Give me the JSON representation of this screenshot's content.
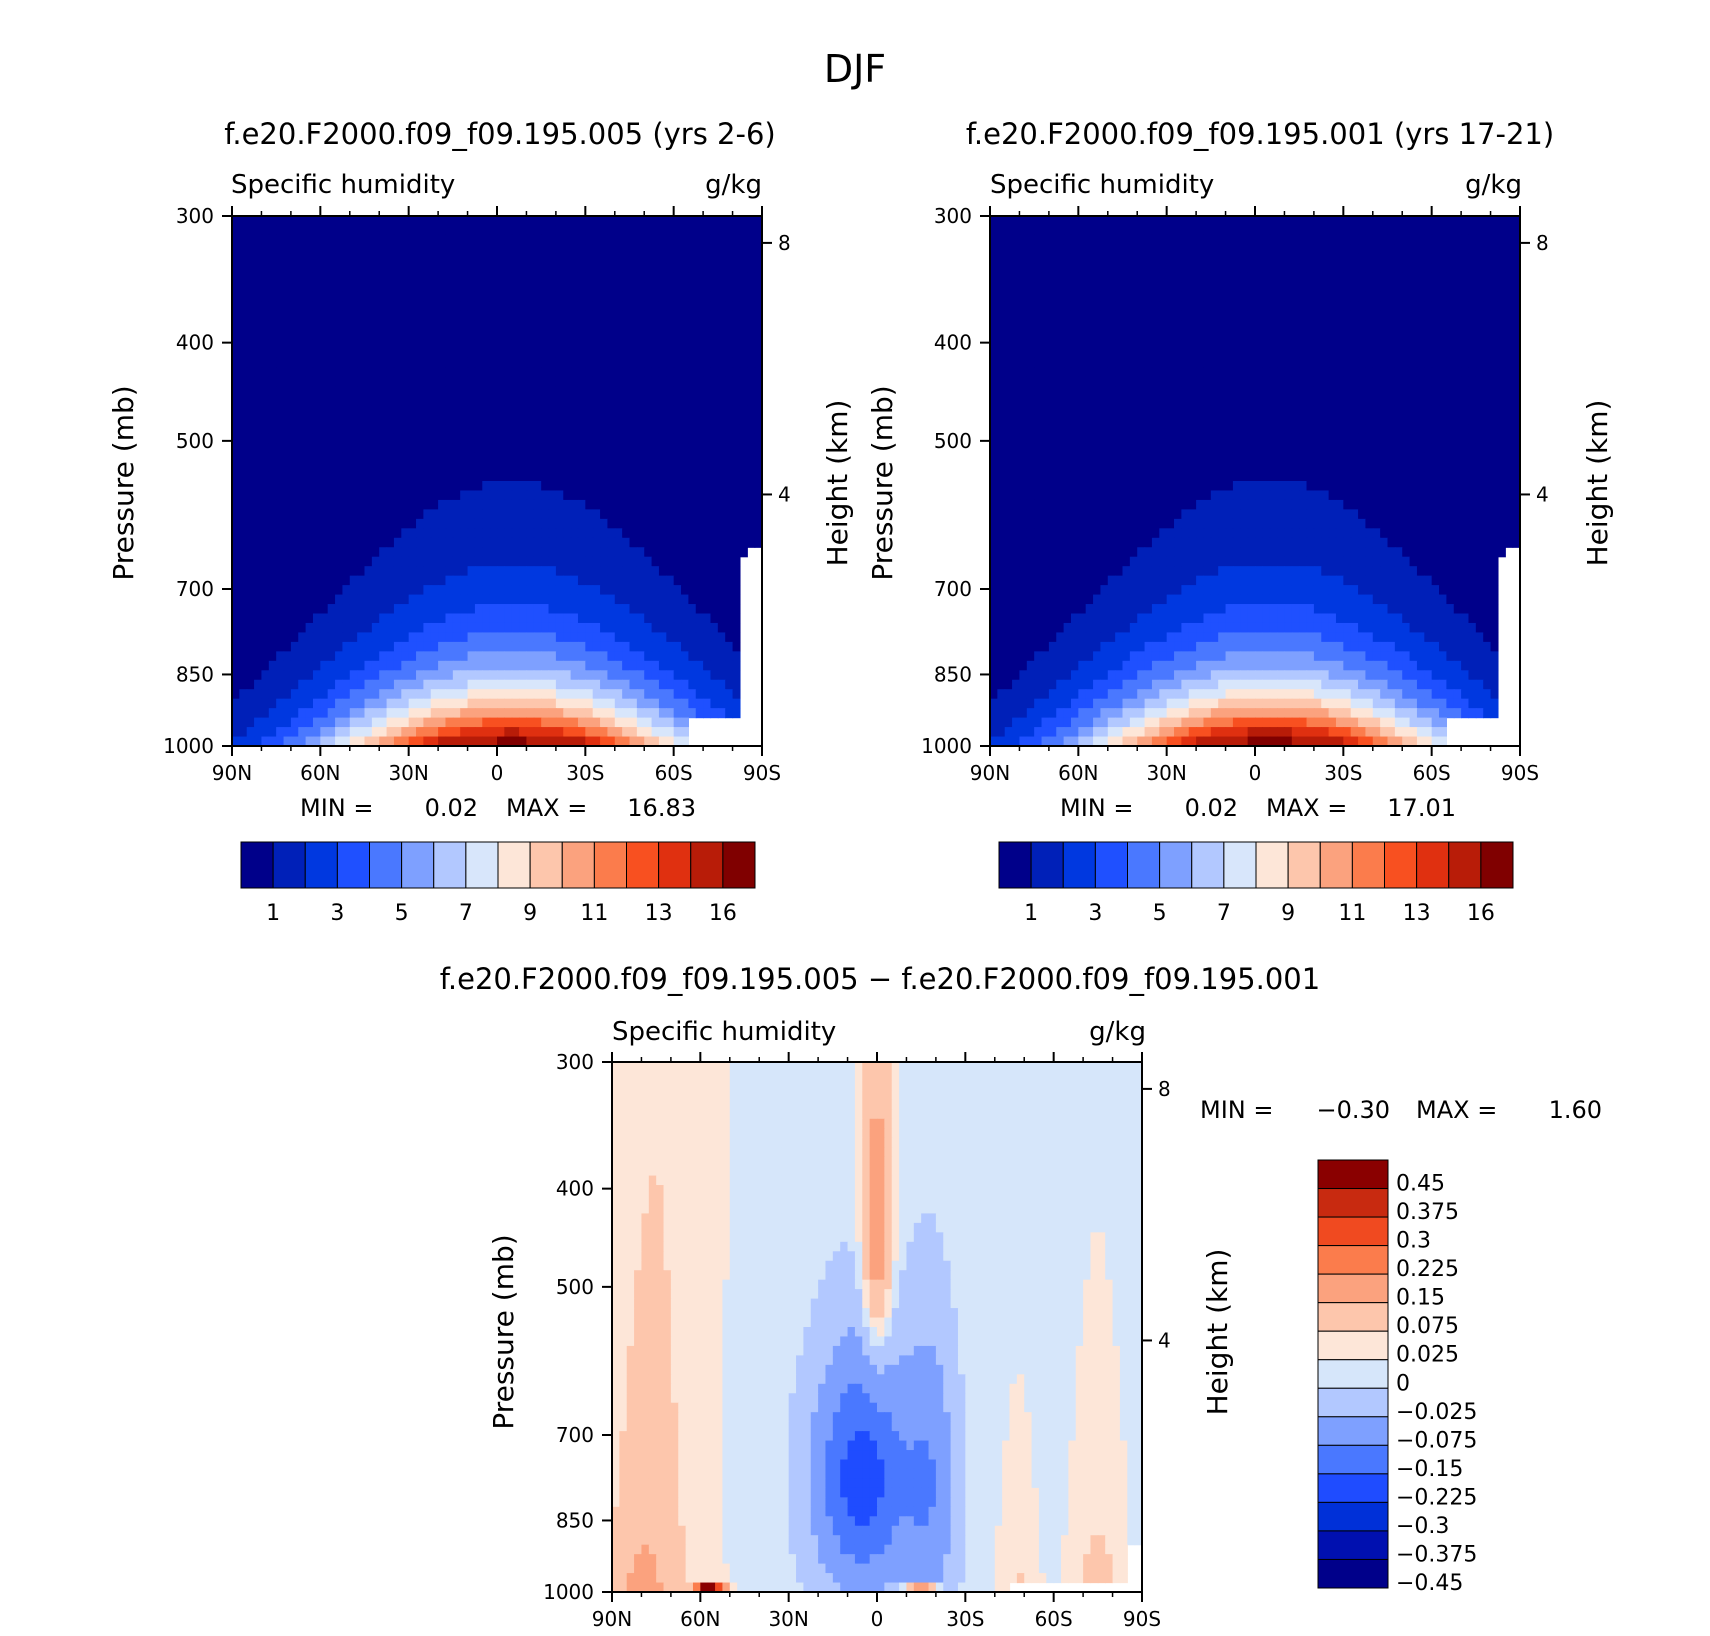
{
  "figure": {
    "title": "DJF"
  },
  "colors": {
    "abs_palette": [
      "#00008a",
      "#0020b8",
      "#0038e0",
      "#1f50ff",
      "#4a78ff",
      "#7ea0ff",
      "#b2c8ff",
      "#d8e6fb",
      "#fde6d8",
      "#fdc6ac",
      "#fba27e",
      "#fb7c4c",
      "#f85020",
      "#e03010",
      "#b81c08",
      "#800000"
    ],
    "diff_palette": [
      "#00008a",
      "#0010b0",
      "#0030d8",
      "#1f4cff",
      "#4a78ff",
      "#7ea0ff",
      "#b2c8ff",
      "#d6e6fa",
      "#fde6d8",
      "#fdc6ac",
      "#fba27e",
      "#fb7c4c",
      "#f04a20",
      "#c82a10",
      "#8a0000"
    ]
  },
  "chart_data": [
    {
      "type": "contour",
      "title": "f.e20.F2000.f09_f09.195.005 (yrs 2-6)",
      "left_label": "Specific humidity",
      "right_label": "g/kg",
      "ylabel": "Pressure (mb)",
      "ylabel_right": "Height (km)",
      "x_ticks": [
        "90N",
        "60N",
        "30N",
        "0",
        "30S",
        "60S",
        "90S"
      ],
      "y_ticks": [
        "300",
        "400",
        "500",
        "700",
        "850",
        "1000"
      ],
      "height_ticks": [
        "8",
        "4"
      ],
      "min_max": {
        "min_label": "MIN =",
        "min": "0.02",
        "max_label": "MAX =",
        "max": "16.83"
      },
      "colorbar_labels": [
        "1",
        "3",
        "5",
        "7",
        "9",
        "11",
        "13",
        "16"
      ],
      "field": {
        "peak_lat": 0,
        "peak": 16.8,
        "width": 28,
        "height_decay": 0.55,
        "shift": -5
      }
    },
    {
      "type": "contour",
      "title": "f.e20.F2000.f09_f09.195.001 (yrs 17-21)",
      "left_label": "Specific humidity",
      "right_label": "g/kg",
      "ylabel": "Pressure (mb)",
      "ylabel_right": "Height (km)",
      "x_ticks": [
        "90N",
        "60N",
        "30N",
        "0",
        "30S",
        "60S",
        "90S"
      ],
      "y_ticks": [
        "300",
        "400",
        "500",
        "700",
        "850",
        "1000"
      ],
      "height_ticks": [
        "8",
        "4"
      ],
      "min_max": {
        "min_label": "MIN =",
        "min": "0.02",
        "max_label": "MAX =",
        "max": "17.01"
      },
      "colorbar_labels": [
        "1",
        "3",
        "5",
        "7",
        "9",
        "11",
        "13",
        "16"
      ],
      "field": {
        "peak_lat": 0,
        "peak": 17.0,
        "width": 28,
        "height_decay": 0.55,
        "shift": -5
      }
    },
    {
      "type": "contour",
      "title": "f.e20.F2000.f09_f09.195.005 − f.e20.F2000.f09_f09.195.001",
      "left_label": "Specific humidity",
      "right_label": "g/kg",
      "ylabel": "Pressure (mb)",
      "ylabel_right": "Height (km)",
      "x_ticks": [
        "90N",
        "60N",
        "30N",
        "0",
        "30S",
        "60S",
        "90S"
      ],
      "y_ticks": [
        "300",
        "400",
        "500",
        "700",
        "850",
        "1000"
      ],
      "height_ticks": [
        "8",
        "4"
      ],
      "min_max": {
        "min_label": "MIN =",
        "min": "−0.30",
        "max_label": "MAX =",
        "max": "1.60"
      },
      "colorbar_labels": [
        "0.45",
        "0.375",
        "0.3",
        "0.225",
        "0.15",
        "0.075",
        "0.025",
        "0",
        "−0.025",
        "−0.075",
        "−0.15",
        "−0.225",
        "−0.3",
        "−0.375",
        "−0.45"
      ]
    }
  ]
}
